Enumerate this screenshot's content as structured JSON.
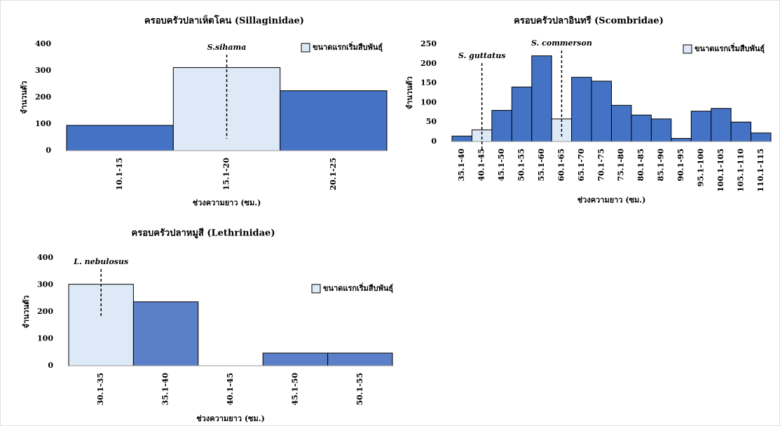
{
  "chart_data": [
    {
      "type": "bar",
      "title": "ครอบครัวปลาเห็ดโคน (Sillaginidae)",
      "x_label": "ช่วงความยาว (ซม.)",
      "y_label": "จำนวนตัว",
      "categories": [
        "10.1-15",
        "15.1-20",
        "20.1-25"
      ],
      "values": [
        95,
        312,
        225
      ],
      "colors": [
        "#4472c4",
        "#dde9f6",
        "#4472c4"
      ],
      "ylim": [
        0,
        400
      ],
      "yticks": [
        0,
        100,
        200,
        300,
        400
      ],
      "legend": {
        "label": "ขนาดแรกเริ่มสืบพันธุ์",
        "color": "#dde9f6"
      },
      "annotations": [
        {
          "text": "S.sihama",
          "category": "15.1-20"
        }
      ]
    },
    {
      "type": "bar",
      "title": "ครอบครัวปลาอินทรี (Scombridae)",
      "x_label": "ช่วงความยาว (ซม.)",
      "y_label": "จำนวนตัว",
      "categories": [
        "35.1-40",
        "40.1-45",
        "45.1-50",
        "50.1-55",
        "55.1-60",
        "60.1-65",
        "65.1-70",
        "70.1-75",
        "75.1-80",
        "80.1-85",
        "85.1-90",
        "90.1-95",
        "95.1-100",
        "100.1-105",
        "105.1-110",
        "110.1-115"
      ],
      "values": [
        14,
        30,
        80,
        140,
        220,
        58,
        165,
        155,
        93,
        68,
        58,
        8,
        78,
        85,
        50,
        22
      ],
      "colors": [
        "#4472c4",
        "#dde9f6",
        "#4472c4",
        "#4472c4",
        "#4472c4",
        "#dde9f6",
        "#4472c4",
        "#4472c4",
        "#4472c4",
        "#4472c4",
        "#4472c4",
        "#4472c4",
        "#4472c4",
        "#4472c4",
        "#4472c4",
        "#4472c4"
      ],
      "ylim": [
        0,
        250
      ],
      "yticks": [
        0,
        50,
        100,
        150,
        200,
        250
      ],
      "legend": {
        "label": "ขนาดแรกเริ่มสืบพันธุ์",
        "color": "#dde9f6"
      },
      "annotations": [
        {
          "text": "S. guttatus",
          "category": "40.1-45"
        },
        {
          "text": "S. commerson",
          "category": "60.1-65"
        }
      ]
    },
    {
      "type": "bar",
      "title": "ครอบครัวปลาหมูสี (Lethrinidae)",
      "x_label": "ช่วงความยาว (ซม.)",
      "y_label": "จำนวนตัว",
      "categories": [
        "30.1-35",
        "35.1-40",
        "40.1-45",
        "45.1-50",
        "50.1-55"
      ],
      "values": [
        302,
        237,
        0,
        47,
        47
      ],
      "colors": [
        "#dde9f6",
        "#5b7fc8",
        "#5b7fc8",
        "#5b7fc8",
        "#5b7fc8"
      ],
      "ylim": [
        0,
        400
      ],
      "yticks": [
        0,
        100,
        200,
        300,
        400
      ],
      "legend": {
        "label": "ขนาดแรกเริ่มสืบพันธุ์",
        "color": "#dde9f6"
      },
      "annotations": [
        {
          "text": "L. nebulosus",
          "category": "30.1-35"
        }
      ]
    }
  ]
}
